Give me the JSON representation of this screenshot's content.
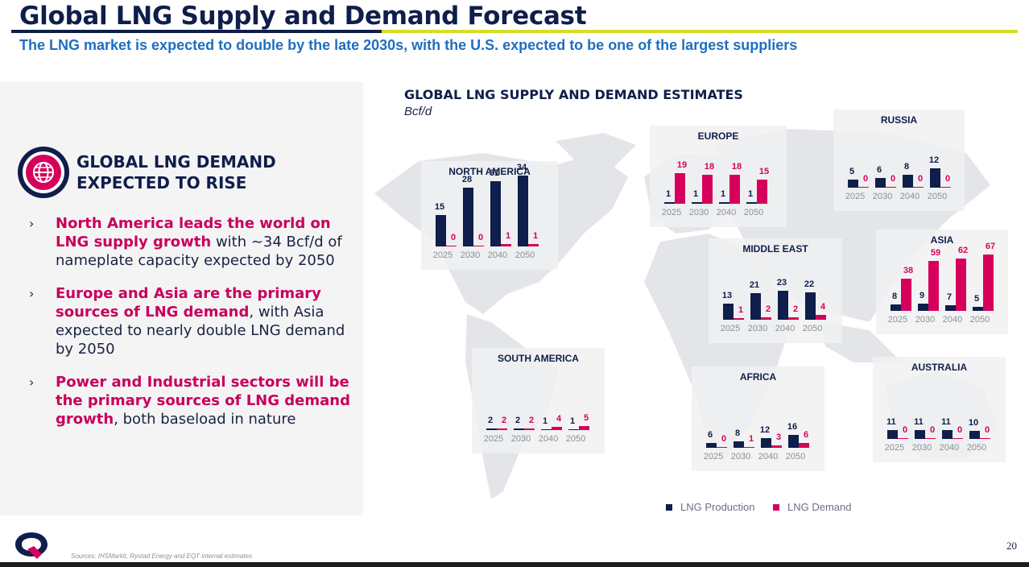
{
  "title": "Global LNG Supply and Demand Forecast",
  "subtitle": "The LNG market is expected to double by the late 2030s, with the U.S. expected to be one of the largest suppliers",
  "panel": {
    "heading": "GLOBAL LNG DEMAND EXPECTED TO RISE",
    "icon": "globe-icon",
    "bullets": [
      {
        "highlight": "North America leads the world on LNG supply growth",
        "rest": " with ~34 Bcf/d of nameplate capacity expected by 2050"
      },
      {
        "highlight": "Europe and Asia are the primary sources of LNG demand",
        "rest": ", with Asia expected to nearly double LNG demand by 2050"
      },
      {
        "highlight": "Power and Industrial sectors will be the primary sources of LNG demand growth",
        "rest": ", both baseload in nature"
      }
    ]
  },
  "chart": {
    "title": "GLOBAL LNG SUPPLY AND DEMAND ESTIMATES",
    "unit": "Bcf/d",
    "legend": {
      "production": "LNG Production",
      "demand": "LNG Demand"
    }
  },
  "chart_data": {
    "type": "bar",
    "title": "GLOBAL LNG SUPPLY AND DEMAND ESTIMATES",
    "ylabel": "Bcf/d",
    "categories": [
      "2025",
      "2030",
      "2040",
      "2050"
    ],
    "colors": {
      "production": "#0f1e4a",
      "demand": "#d6005c"
    },
    "regions": [
      {
        "name": "NORTH AMERICA",
        "production": [
          15,
          28,
          31,
          34
        ],
        "demand": [
          0,
          0,
          1,
          1
        ]
      },
      {
        "name": "EUROPE",
        "production": [
          1,
          1,
          1,
          1
        ],
        "demand": [
          19,
          18,
          18,
          15
        ]
      },
      {
        "name": "RUSSIA",
        "production": [
          5,
          6,
          8,
          12
        ],
        "demand": [
          0,
          0,
          0,
          0
        ]
      },
      {
        "name": "MIDDLE EAST",
        "production": [
          13,
          21,
          23,
          22
        ],
        "demand": [
          1,
          2,
          2,
          4
        ]
      },
      {
        "name": "ASIA",
        "production": [
          8,
          9,
          7,
          5
        ],
        "demand": [
          38,
          59,
          62,
          67
        ]
      },
      {
        "name": "SOUTH AMERICA",
        "production": [
          2,
          2,
          1,
          1
        ],
        "demand": [
          2,
          2,
          4,
          5
        ]
      },
      {
        "name": "AFRICA",
        "production": [
          6,
          8,
          12,
          16
        ],
        "demand": [
          0,
          1,
          3,
          6
        ]
      },
      {
        "name": "AUSTRALIA",
        "production": [
          11,
          11,
          11,
          10
        ],
        "demand": [
          0,
          0,
          0,
          0
        ]
      }
    ]
  },
  "footer": {
    "sources": "Sources: IHSMarkit, Rystad Energy and EQT internal estimates",
    "page": "20",
    "logo": "eqt-logo"
  }
}
